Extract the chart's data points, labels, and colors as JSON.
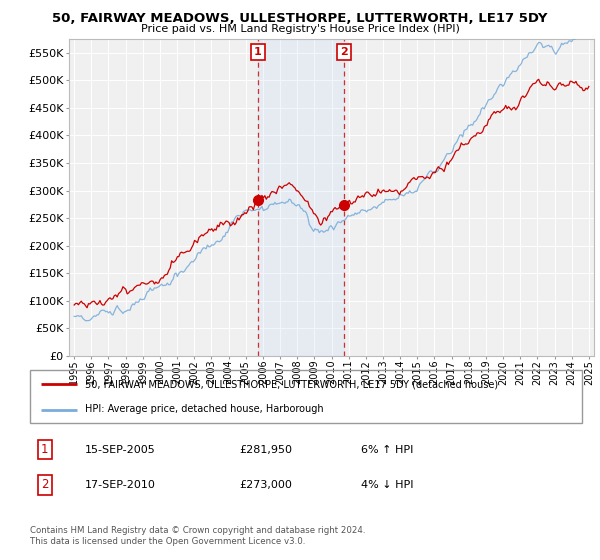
{
  "title": "50, FAIRWAY MEADOWS, ULLESTHORPE, LUTTERWORTH, LE17 5DY",
  "subtitle": "Price paid vs. HM Land Registry's House Price Index (HPI)",
  "legend_line1": "50, FAIRWAY MEADOWS, ULLESTHORPE, LUTTERWORTH, LE17 5DY (detached house)",
  "legend_line2": "HPI: Average price, detached house, Harborough",
  "annotation1_label": "1",
  "annotation1_date": "15-SEP-2005",
  "annotation1_price": "£281,950",
  "annotation1_hpi": "6% ↑ HPI",
  "annotation2_label": "2",
  "annotation2_date": "17-SEP-2010",
  "annotation2_price": "£273,000",
  "annotation2_hpi": "4% ↓ HPI",
  "footnote": "Contains HM Land Registry data © Crown copyright and database right 2024.\nThis data is licensed under the Open Government Licence v3.0.",
  "hpi_color": "#7aaddb",
  "price_color": "#cc0000",
  "annotation_color": "#cc0000",
  "bg_color": "#ffffff",
  "plot_bg_color": "#f0f0f0",
  "grid_color": "#ffffff",
  "ylim": [
    0,
    575000
  ],
  "yticks": [
    0,
    50000,
    100000,
    150000,
    200000,
    250000,
    300000,
    350000,
    400000,
    450000,
    500000,
    550000
  ],
  "year_start": 1995,
  "year_end": 2025,
  "sale1_year": 2005.71,
  "sale1_price": 281950,
  "sale2_year": 2010.71,
  "sale2_price": 273000
}
